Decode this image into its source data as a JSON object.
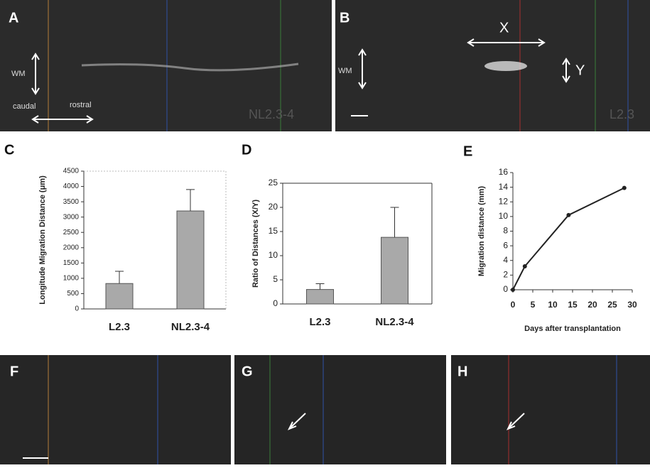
{
  "panels": {
    "A": {
      "label": "A",
      "wm": "WM",
      "caudal": "caudal",
      "rostral": "rostral",
      "tag": "NL2.3-4"
    },
    "B": {
      "label": "B",
      "x": "X",
      "y": "Y",
      "wm": "WM",
      "tag": "L2.3"
    },
    "F": {
      "label": "F"
    },
    "G": {
      "label": "G"
    },
    "H": {
      "label": "H"
    }
  },
  "chart_data": [
    {
      "type": "bar",
      "panel": "C",
      "ylabel": "Longitude Migration Distance (μm)",
      "categories": [
        "L2.3",
        "NL2.3-4"
      ],
      "values": [
        830,
        3200
      ],
      "errors": [
        400,
        700
      ],
      "color": "#a9a9a9",
      "ylim": [
        0,
        4500
      ],
      "yticks": [
        0,
        500,
        1000,
        1500,
        2000,
        2500,
        3000,
        3500,
        4000,
        4500
      ]
    },
    {
      "type": "bar",
      "panel": "D",
      "ylabel": "Ratio of Distances (X/Y)",
      "categories": [
        "L2.3",
        "NL2.3-4"
      ],
      "values": [
        3,
        13.8
      ],
      "errors": [
        1.2,
        6.2
      ],
      "color": "#a9a9a9",
      "ylim": [
        0,
        25
      ],
      "yticks": [
        0,
        5,
        10,
        15,
        20,
        25
      ]
    },
    {
      "type": "line",
      "panel": "E",
      "ylabel": "Migration distance (mm)",
      "xlabel": "Days after transplantation",
      "x": [
        0,
        3,
        14,
        28
      ],
      "values": [
        0,
        3.2,
        10.2,
        13.9
      ],
      "color": "#222",
      "xlim": [
        0,
        30
      ],
      "xticks": [
        0,
        5,
        10,
        15,
        20,
        25,
        30
      ],
      "ylim": [
        0,
        16
      ],
      "yticks": [
        0,
        2,
        4,
        6,
        8,
        10,
        12,
        14,
        16
      ]
    }
  ]
}
